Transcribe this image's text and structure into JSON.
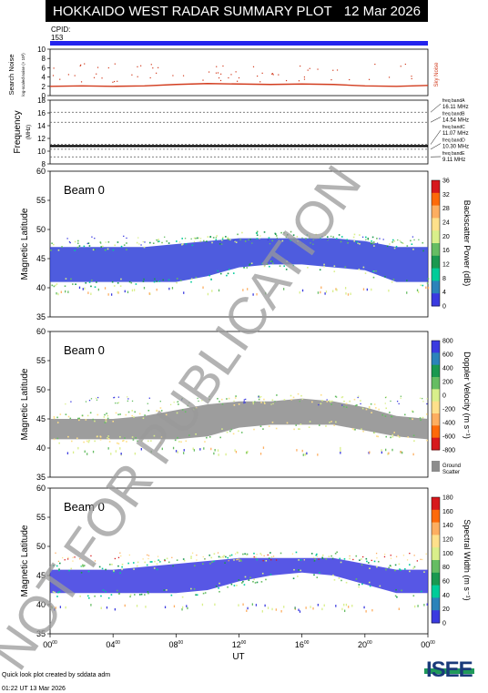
{
  "header": {
    "title": "HOKKAIDO WEST RADAR SUMMARY PLOT",
    "date": "12 Mar 2026"
  },
  "cpid": {
    "label": "CPID:",
    "value": "153"
  },
  "noise_panel": {
    "ylabel_main": "Search Noise",
    "ylabel_sub": "log-scaled noise (× 10³)",
    "right_label": "Sky Noise"
  },
  "freq_panel": {
    "ylabel": "Frequency",
    "unit": "(MHz)",
    "bands": [
      {
        "name": "freq bandA",
        "value": "16.11 MHz"
      },
      {
        "name": "freq bandB",
        "value": "14.54 MHz"
      },
      {
        "name": "freq bandC",
        "value": "11.07 MHz"
      },
      {
        "name": "freq bandD",
        "value": "10.30 MHz"
      },
      {
        "name": "freq bandE",
        "value": "9.11 MHz"
      }
    ]
  },
  "panels": {
    "power": {
      "beam": "Beam  0",
      "ylabel": "Magnetic Latitude",
      "cbar_label": "Backscatter Power (dB)",
      "cbar_ticks": [
        "36",
        "32",
        "28",
        "24",
        "20",
        "16",
        "12",
        "8",
        "4",
        "0"
      ]
    },
    "velocity": {
      "beam": "Beam  0",
      "ylabel": "Magnetic Latitude",
      "cbar_label": "Doppler Velocity (m s⁻¹)",
      "cbar_ticks": [
        "800",
        "600",
        "400",
        "200",
        "0",
        "-200",
        "-400",
        "-600",
        "-800"
      ],
      "ground_label": "Ground Scatter"
    },
    "width": {
      "beam": "Beam  0",
      "ylabel": "Magnetic Latitude",
      "cbar_label": "Spectral Width (m s⁻¹)",
      "cbar_ticks": [
        "180",
        "160",
        "140",
        "120",
        "100",
        "80",
        "60",
        "40",
        "20",
        "0"
      ]
    }
  },
  "xaxis": {
    "label": "UT",
    "ticks": [
      "00⁰⁰",
      "04⁰⁰",
      "08⁰⁰",
      "12⁰⁰",
      "16⁰⁰",
      "20⁰⁰",
      "00⁰⁰"
    ]
  },
  "watermark": "NOT FOR PUBLICATION",
  "footer": {
    "line1": "Quick look plot created by sddata adm",
    "line2": "01:22 UT 13 Mar 2026"
  },
  "logo": "ISEE",
  "colors": {
    "accent_bar": "#2323ee",
    "noise_line": "#d23c1e",
    "ground": "#8c8c8c"
  },
  "chart_data": [
    {
      "type": "line",
      "title": "Search Noise",
      "x_range": [
        "00",
        "24"
      ],
      "ylim": [
        0,
        10
      ],
      "y_ticks": [
        0,
        2,
        4,
        6,
        8,
        10
      ],
      "series": [
        {
          "name": "Sky Noise",
          "x": [
            0,
            2,
            4,
            6,
            8,
            10,
            12,
            14,
            16,
            18,
            20,
            22,
            24
          ],
          "values": [
            2.0,
            2.1,
            2.0,
            2.1,
            2.4,
            2.6,
            2.5,
            2.4,
            2.5,
            2.4,
            2.1,
            2.0,
            2.2
          ]
        }
      ]
    },
    {
      "type": "line",
      "title": "Frequency",
      "ylim": [
        8,
        18
      ],
      "y_ticks": [
        8,
        10,
        12,
        14,
        16,
        18
      ],
      "series": [
        {
          "values": [
            10.8,
            10.8,
            10.8,
            10.8,
            10.8,
            10.8,
            10.8
          ]
        }
      ],
      "reference_lines": [
        16.11,
        14.54,
        11.07,
        10.3,
        9.11
      ]
    },
    {
      "type": "heatmap",
      "title": "Backscatter Power (dB)",
      "ylim": [
        35,
        60
      ],
      "y_ticks": [
        35,
        40,
        45,
        50,
        55,
        60
      ],
      "clim": [
        0,
        36
      ],
      "x": [
        0,
        2,
        4,
        6,
        8,
        10,
        12,
        14,
        16,
        18,
        20,
        22,
        24
      ],
      "upper_edge": [
        47,
        47,
        47,
        47,
        47.5,
        48,
        48.5,
        48.5,
        48.5,
        48.5,
        48,
        47,
        47
      ],
      "lower_edge": [
        41,
        41,
        41,
        41,
        41,
        42,
        43.5,
        44,
        44,
        43.5,
        43,
        41,
        41
      ]
    },
    {
      "type": "heatmap",
      "title": "Doppler Velocity (m s⁻¹)",
      "ylim": [
        35,
        60
      ],
      "y_ticks": [
        35,
        40,
        45,
        50,
        55,
        60
      ],
      "clim": [
        -800,
        800
      ],
      "x": [
        0,
        2,
        4,
        6,
        8,
        10,
        12,
        14,
        16,
        18,
        20,
        22,
        24
      ],
      "upper_edge": [
        45,
        45,
        45,
        45.5,
        46.5,
        47.5,
        48,
        48,
        48.5,
        48,
        47,
        45.5,
        45
      ],
      "lower_edge": [
        41.5,
        41.5,
        41.5,
        41.5,
        41.5,
        42,
        43.5,
        44,
        44,
        44,
        43,
        42,
        41.5
      ]
    },
    {
      "type": "heatmap",
      "title": "Spectral Width (m s⁻¹)",
      "ylim": [
        35,
        60
      ],
      "y_ticks": [
        35,
        40,
        45,
        50,
        55,
        60
      ],
      "clim": [
        0,
        180
      ],
      "x": [
        0,
        2,
        4,
        6,
        8,
        10,
        12,
        14,
        16,
        18,
        20,
        22,
        24
      ],
      "upper_edge": [
        46,
        46,
        46,
        46.5,
        47,
        47.5,
        48,
        48,
        48,
        48,
        47,
        46,
        46
      ],
      "lower_edge": [
        42,
        42,
        42,
        42,
        42,
        42.5,
        44,
        45,
        45.5,
        45,
        43.5,
        42,
        42
      ]
    }
  ]
}
